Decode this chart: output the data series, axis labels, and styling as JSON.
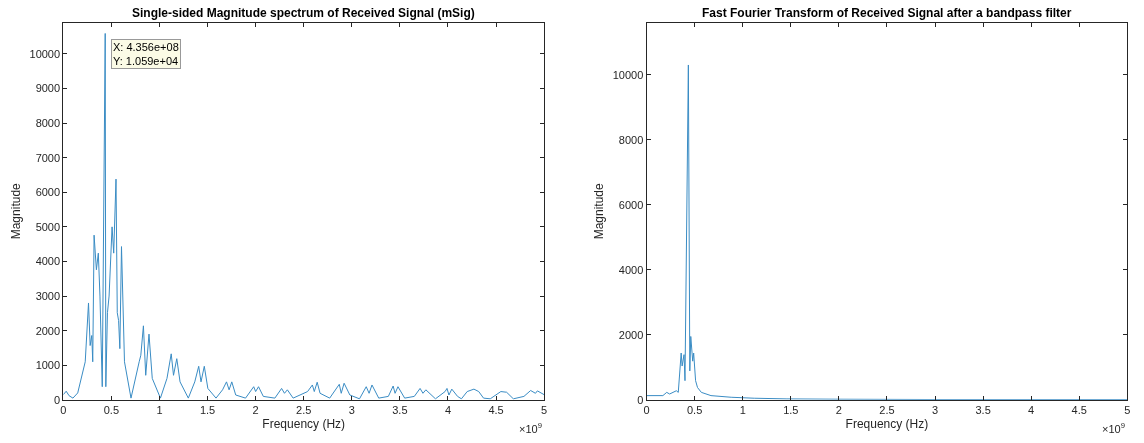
{
  "chart_data": [
    {
      "type": "line",
      "title": "Single-sided Magnitude spectrum of Received Signal (mSig)",
      "xlabel": "Frequency (Hz)",
      "ylabel": "Magnitude",
      "annotations": [
        {
          "text": "X: 4.356e+08\nY: 1.059e+04",
          "x": 0.4356,
          "y": 10590
        },
        "×10$^{9}$"
      ],
      "xlim": [
        0,
        5
      ],
      "xticks": [
        0,
        0.5,
        1,
        1.5,
        2,
        2.5,
        3,
        3.5,
        4,
        4.5,
        5
      ],
      "ylim": [
        0,
        10900
      ],
      "yticks": [
        0,
        1000,
        2000,
        3000,
        4000,
        5000,
        6000,
        7000,
        8000,
        9000,
        10000
      ],
      "x": [
        0,
        0.03,
        0.06,
        0.1,
        0.15,
        0.228,
        0.262,
        0.279,
        0.296,
        0.306,
        0.32,
        0.344,
        0.364,
        0.381,
        0.405,
        0.4356,
        0.442,
        0.459,
        0.476,
        0.507,
        0.524,
        0.548,
        0.561,
        0.575,
        0.588,
        0.605,
        0.636,
        0.704,
        0.789,
        0.806,
        0.833,
        0.857,
        0.891,
        0.925,
        1.01,
        1.078,
        1.122,
        1.146,
        1.18,
        1.214,
        1.3,
        1.367,
        1.408,
        1.432,
        1.466,
        1.503,
        1.588,
        1.656,
        1.697,
        1.724,
        1.752,
        1.793,
        1.895,
        1.98,
        2.0,
        2.03,
        2.08,
        2.2,
        2.27,
        2.3,
        2.33,
        2.39,
        2.54,
        2.59,
        2.61,
        2.64,
        2.67,
        2.77,
        2.87,
        2.89,
        2.92,
        2.98,
        3.08,
        3.15,
        3.18,
        3.21,
        3.28,
        3.38,
        3.43,
        3.45,
        3.48,
        3.55,
        3.65,
        3.71,
        3.74,
        3.77,
        3.87,
        3.97,
        3.99,
        4.01,
        4.04,
        4.1,
        4.14,
        4.2,
        4.27,
        4.32,
        4.37,
        4.44,
        4.55,
        4.61,
        4.68,
        4.79,
        4.86,
        4.91,
        4.93,
        5
      ],
      "series": [
        {
          "color": "#3a8cc4",
          "values": [
            150,
            250,
            120,
            50,
            200,
            1100,
            2800,
            1570,
            1860,
            1100,
            4760,
            3760,
            4240,
            3000,
            380,
            10590,
            380,
            2520,
            3000,
            5000,
            4240,
            6380,
            2520,
            2290,
            1480,
            4430,
            1100,
            50,
            1100,
            1290,
            2140,
            710,
            1900,
            620,
            50,
            620,
            1330,
            710,
            1190,
            520,
            50,
            520,
            970,
            520,
            970,
            330,
            50,
            290,
            520,
            290,
            520,
            140,
            50,
            380,
            240,
            380,
            100,
            50,
            330,
            190,
            290,
            50,
            240,
            430,
            240,
            510,
            190,
            50,
            450,
            190,
            480,
            140,
            30,
            380,
            190,
            430,
            50,
            100,
            400,
            190,
            380,
            50,
            100,
            330,
            190,
            290,
            30,
            240,
            330,
            140,
            310,
            100,
            30,
            240,
            310,
            240,
            50,
            30,
            240,
            220,
            30,
            100,
            270,
            190,
            260,
            150
          ]
        }
      ]
    },
    {
      "type": "line",
      "title": "Fast Fourier Transform of Received Signal after a bandpass filter",
      "xlabel": "Frequency (Hz)",
      "ylabel": "Magnitude",
      "annotations": [
        "×10$^{9}$"
      ],
      "xlim": [
        0,
        5
      ],
      "xticks": [
        0,
        0.5,
        1,
        1.5,
        2,
        2.5,
        3,
        3.5,
        4,
        4.5,
        5
      ],
      "ylim": [
        0,
        11600
      ],
      "yticks": [
        0,
        2000,
        4000,
        6000,
        8000,
        10000
      ],
      "x": [
        0,
        0.17,
        0.21,
        0.24,
        0.31,
        0.33,
        0.36,
        0.37,
        0.39,
        0.4,
        0.435,
        0.45,
        0.46,
        0.48,
        0.49,
        0.51,
        0.53,
        0.57,
        0.67,
        0.88,
        1.12,
        1.46,
        2,
        3,
        5
      ],
      "series": [
        {
          "color": "#3a8cc4",
          "values": [
            130,
            130,
            230,
            180,
            280,
            230,
            1440,
            1040,
            1390,
            590,
            10300,
            890,
            1950,
            1190,
            1440,
            590,
            380,
            230,
            130,
            80,
            50,
            30,
            20,
            10,
            10
          ]
        }
      ]
    }
  ]
}
